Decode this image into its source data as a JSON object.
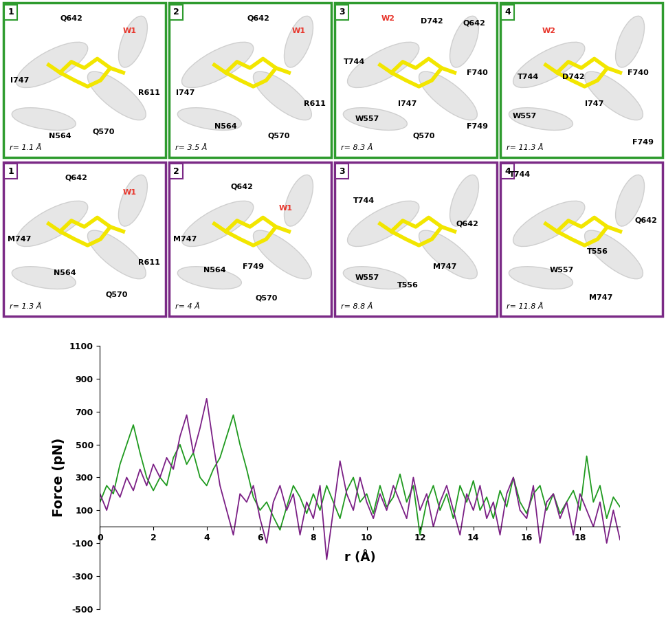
{
  "snapshots": [
    {
      "row_color": "#2e9b2e",
      "panels": [
        {
          "number": "1",
          "r": "r= 1.1 Å",
          "labels": [
            {
              "text": "Q642"
            },
            {
              "text": "I747"
            },
            {
              "text": "W1",
              "color": "#e8352b"
            },
            {
              "text": "R611"
            },
            {
              "text": "N564"
            },
            {
              "text": "Q570"
            }
          ]
        },
        {
          "number": "2",
          "r": "r= 3.5 Å",
          "labels": [
            {
              "text": "Q642"
            },
            {
              "text": "I747"
            },
            {
              "text": "W1",
              "color": "#e8352b"
            },
            {
              "text": "R611"
            },
            {
              "text": "N564"
            },
            {
              "text": "Q570"
            }
          ]
        },
        {
          "number": "3",
          "r": "r= 8.3 Å",
          "labels": [
            {
              "text": "W2",
              "color": "#e8352b"
            },
            {
              "text": "D742"
            },
            {
              "text": "Q642"
            },
            {
              "text": "T744"
            },
            {
              "text": "F740"
            },
            {
              "text": "I747"
            },
            {
              "text": "W557"
            },
            {
              "text": "Q570"
            },
            {
              "text": "F749"
            }
          ]
        },
        {
          "number": "4",
          "r": "r= 11.3 Å",
          "labels": [
            {
              "text": "W2",
              "color": "#e8352b"
            },
            {
              "text": "T744"
            },
            {
              "text": "D742"
            },
            {
              "text": "F740"
            },
            {
              "text": "W557"
            },
            {
              "text": "I747"
            },
            {
              "text": "F749"
            }
          ]
        }
      ]
    },
    {
      "row_color": "#7b2a86",
      "panels": [
        {
          "number": "1",
          "r": "r= 1.3 Å",
          "labels": [
            {
              "text": "Q642"
            },
            {
              "text": "W1",
              "color": "#e8352b"
            },
            {
              "text": "M747"
            },
            {
              "text": "N564"
            },
            {
              "text": "R611"
            },
            {
              "text": "Q570"
            }
          ]
        },
        {
          "number": "2",
          "r": "r= 4 Å",
          "labels": [
            {
              "text": "Q642"
            },
            {
              "text": "W1",
              "color": "#e8352b"
            },
            {
              "text": "M747"
            },
            {
              "text": "N564"
            },
            {
              "text": "F749"
            },
            {
              "text": "Q570"
            }
          ]
        },
        {
          "number": "3",
          "r": "r= 8.8 Å",
          "labels": [
            {
              "text": "T744"
            },
            {
              "text": "Q642"
            },
            {
              "text": "W557"
            },
            {
              "text": "T556"
            },
            {
              "text": "M747"
            }
          ]
        },
        {
          "number": "4",
          "r": "r= 11.8 Å",
          "labels": [
            {
              "text": "T744"
            },
            {
              "text": "Q642"
            },
            {
              "text": "T556"
            },
            {
              "text": "W557"
            },
            {
              "text": "M747"
            }
          ]
        }
      ]
    }
  ],
  "chart_data": {
    "type": "line",
    "x_label": "r (Å)",
    "y_label": "Force (pN)",
    "x": [
      0,
      0.25,
      0.5,
      0.75,
      1,
      1.25,
      1.5,
      1.75,
      2,
      2.25,
      2.5,
      2.75,
      3,
      3.25,
      3.5,
      3.75,
      4,
      4.25,
      4.5,
      4.75,
      5,
      5.25,
      5.5,
      5.75,
      6,
      6.25,
      6.5,
      6.75,
      7,
      7.25,
      7.5,
      7.75,
      8,
      8.25,
      8.5,
      8.75,
      9,
      9.25,
      9.5,
      9.75,
      10,
      10.25,
      10.5,
      10.75,
      11,
      11.25,
      11.5,
      11.75,
      12,
      12.25,
      12.5,
      12.75,
      13,
      13.25,
      13.5,
      13.75,
      14,
      14.25,
      14.5,
      14.75,
      15,
      15.25,
      15.5,
      15.75,
      16,
      16.25,
      16.5,
      16.75,
      17,
      17.25,
      17.5,
      17.75,
      18,
      18.25,
      18.5,
      18.75,
      19,
      19.25,
      19.5
    ],
    "series": [
      {
        "color": "#1f9a1f",
        "values": [
          150,
          250,
          200,
          380,
          500,
          620,
          450,
          300,
          220,
          300,
          250,
          420,
          500,
          380,
          450,
          300,
          250,
          350,
          420,
          550,
          680,
          500,
          350,
          180,
          100,
          150,
          60,
          -20,
          120,
          250,
          180,
          80,
          200,
          100,
          250,
          150,
          50,
          220,
          300,
          150,
          200,
          80,
          250,
          120,
          180,
          320,
          150,
          250,
          -50,
          150,
          250,
          100,
          200,
          50,
          250,
          150,
          280,
          100,
          180,
          50,
          220,
          120,
          300,
          150,
          80,
          200,
          250,
          100,
          200,
          80,
          150,
          220,
          100,
          430,
          150,
          250,
          50,
          180,
          120
        ]
      },
      {
        "color": "#7b1f85",
        "values": [
          200,
          100,
          250,
          180,
          300,
          220,
          350,
          250,
          380,
          300,
          420,
          350,
          550,
          680,
          450,
          600,
          780,
          500,
          250,
          100,
          -50,
          200,
          150,
          250,
          50,
          -100,
          150,
          250,
          100,
          200,
          -50,
          150,
          50,
          250,
          -200,
          100,
          400,
          200,
          100,
          300,
          150,
          50,
          200,
          100,
          250,
          150,
          50,
          300,
          100,
          200,
          0,
          150,
          250,
          100,
          -50,
          200,
          100,
          250,
          50,
          150,
          -50,
          200,
          300,
          100,
          50,
          250,
          -100,
          150,
          200,
          50,
          150,
          -50,
          200,
          100,
          0,
          150,
          -100,
          100,
          -80
        ]
      }
    ],
    "xlim": [
      0,
      19.5
    ],
    "xticks": [
      0,
      2,
      4,
      6,
      8,
      10,
      12,
      14,
      16,
      18
    ],
    "ylim": [
      -500,
      1100
    ],
    "yticks": [
      -500,
      -300,
      -100,
      100,
      300,
      500,
      700,
      900,
      1100
    ],
    "grid": false
  }
}
